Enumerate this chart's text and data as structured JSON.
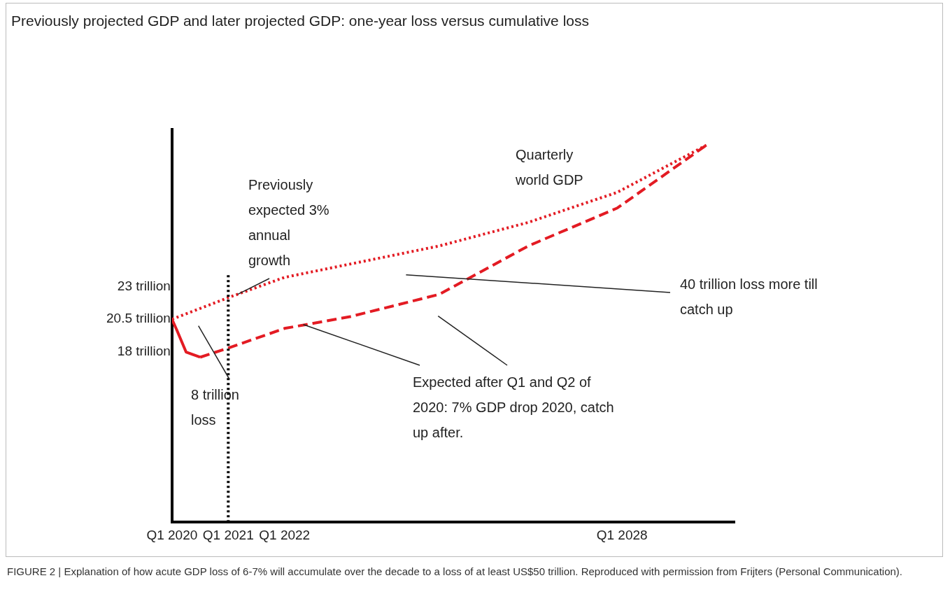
{
  "chart_data": {
    "type": "line",
    "title": "Previously projected GDP and later projected GDP: one-year loss versus cumulative loss",
    "xlim": [
      "2020-01",
      "2030-01"
    ],
    "ylim": [
      5,
      35
    ],
    "xticks": [
      {
        "value": "2020-01",
        "label": "Q1 2020"
      },
      {
        "value": "2021-01",
        "label": "Q1 2021"
      },
      {
        "value": "2022-01",
        "label": "Q1 2022"
      },
      {
        "value": "2028-01",
        "label": "Q1 2028"
      }
    ],
    "yticks": [
      {
        "value": 18,
        "label": "18 trillion"
      },
      {
        "value": 20.5,
        "label": "20.5 trillion"
      },
      {
        "value": 23,
        "label": "23 trillion"
      }
    ],
    "grid": false,
    "legend": false,
    "marker": "none",
    "series": [
      {
        "color": "#e31b23",
        "line_style": "dotted",
        "x": [
          "2020-01",
          "2021-01",
          "2022-01",
          "2024-10",
          "2026-05",
          "2027-12",
          "2029-07"
        ],
        "values": [
          20.5,
          22.15,
          23.7,
          26.1,
          27.9,
          30.2,
          33.8
        ]
      },
      {
        "color": "#e31b23",
        "line_style": "solid",
        "x": [
          "2020-01",
          "2020-02",
          "2020-04",
          "2020-07"
        ],
        "values": [
          20.5,
          19.7,
          18.0,
          17.6
        ]
      },
      {
        "color": "#e31b23",
        "line_style": "dashed",
        "x": [
          "2020-07",
          "2021-01",
          "2022-01",
          "2023-03",
          "2024-10",
          "2026-05",
          "2027-12",
          "2029-07"
        ],
        "values": [
          17.6,
          18.3,
          19.8,
          20.7,
          22.4,
          26.1,
          29.0,
          33.8
        ]
      }
    ],
    "ref_lines": [
      {
        "axis": "x",
        "value": "2021-01",
        "color": "#000000",
        "line_style": "dotted"
      }
    ],
    "annotations": [
      {
        "text": "Previously expected 3% annual growth",
        "x": "2021-03",
        "y": 22.4
      },
      "Quarterly world GDP",
      "40 trillion loss more till catch up",
      "8 trillion loss",
      {
        "text": "Expected after Q1 and Q2 of 2020: 7% GDP drop 2020, catch up after.",
        "x": "2022-05",
        "y": 20.1
      },
      "FIGURE 2 | Explanation of how acute GDP loss of 6-7% will accumulate over the decade to a loss of at least US$50 trillion. Reproduced with permission from Frijters (Personal Communication)."
    ]
  }
}
